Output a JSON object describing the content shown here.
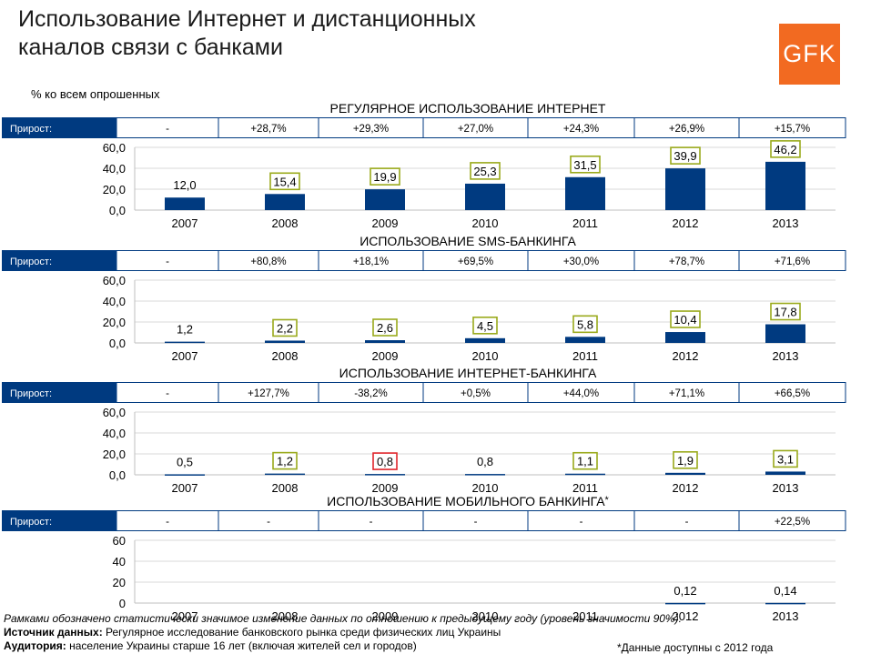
{
  "page_title_line1": "Использование Интернет и дистанционных",
  "page_title_line2": "каналов связи с банками",
  "logo_text": "GFK",
  "subtitle": "% ко всем опрошенных",
  "growth_label": "Прирост:",
  "colors": {
    "bar": "#003a80",
    "header": "#003a80",
    "box_green": "#9aaa1c",
    "box_red": "#e0262c",
    "logo": "#f26a21"
  },
  "chart_data": [
    {
      "type": "bar",
      "title": "РЕГУЛЯРНОЕ ИСПОЛЬЗОВАНИЕ ИНТЕРНЕТ",
      "categories": [
        "2007",
        "2008",
        "2009",
        "2010",
        "2011",
        "2012",
        "2013"
      ],
      "values": [
        12.0,
        15.4,
        19.9,
        25.3,
        31.5,
        39.9,
        46.2
      ],
      "value_labels": [
        "12,0",
        "15,4",
        "19,9",
        "25,3",
        "31,5",
        "39,9",
        "46,2"
      ],
      "boxes": [
        "none",
        "green",
        "green",
        "green",
        "green",
        "green",
        "green"
      ],
      "growth": [
        "-",
        "+28,7%",
        "+29,3%",
        "+27,0%",
        "+24,3%",
        "+26,9%",
        "+15,7%"
      ],
      "ylim": [
        0,
        60
      ],
      "yticks": [
        "60,0",
        "40,0",
        "20,0",
        "0,0"
      ]
    },
    {
      "type": "bar",
      "title": "ИСПОЛЬЗОВАНИЕ SMS-БАНКИНГА",
      "categories": [
        "2007",
        "2008",
        "2009",
        "2010",
        "2011",
        "2012",
        "2013"
      ],
      "values": [
        1.2,
        2.2,
        2.6,
        4.5,
        5.8,
        10.4,
        17.8
      ],
      "value_labels": [
        "1,2",
        "2,2",
        "2,6",
        "4,5",
        "5,8",
        "10,4",
        "17,8"
      ],
      "boxes": [
        "none",
        "green",
        "green",
        "green",
        "green",
        "green",
        "green"
      ],
      "growth": [
        "-",
        "+80,8%",
        "+18,1%",
        "+69,5%",
        "+30,0%",
        "+78,7%",
        "+71,6%"
      ],
      "ylim": [
        0,
        60
      ],
      "yticks": [
        "60,0",
        "40,0",
        "20,0",
        "0,0"
      ]
    },
    {
      "type": "bar",
      "title": "ИСПОЛЬЗОВАНИЕ ИНТЕРНЕТ-БАНКИНГА",
      "categories": [
        "2007",
        "2008",
        "2009",
        "2010",
        "2011",
        "2012",
        "2013"
      ],
      "values": [
        0.5,
        1.2,
        0.8,
        0.8,
        1.1,
        1.9,
        3.1
      ],
      "value_labels": [
        "0,5",
        "1,2",
        "0,8",
        "0,8",
        "1,1",
        "1,9",
        "3,1"
      ],
      "boxes": [
        "none",
        "green",
        "red",
        "none",
        "green",
        "green",
        "green"
      ],
      "growth": [
        "-",
        "+127,7%",
        "-38,2%",
        "+0,5%",
        "+44,0%",
        "+71,1%",
        "+66,5%"
      ],
      "ylim": [
        0,
        60
      ],
      "yticks": [
        "60,0",
        "40,0",
        "20,0",
        "0,0"
      ]
    },
    {
      "type": "bar",
      "title": "ИСПОЛЬЗОВАНИЕ МОБИЛЬНОГО БАНКИНГА",
      "title_suffix": "*",
      "categories": [
        "2007",
        "2008",
        "2009",
        "2010",
        "2011",
        "2012",
        "2013"
      ],
      "values": [
        null,
        null,
        null,
        null,
        null,
        0.12,
        0.14
      ],
      "value_labels": [
        "",
        "",
        "",
        "",
        "",
        "0,12",
        "0,14"
      ],
      "boxes": [
        "none",
        "none",
        "none",
        "none",
        "none",
        "none",
        "none"
      ],
      "growth": [
        "-",
        "-",
        "-",
        "-",
        "-",
        "-",
        "+22,5%"
      ],
      "ylim": [
        0,
        60
      ],
      "yticks": [
        "60",
        "40",
        "20",
        "0"
      ]
    }
  ],
  "footnote_significance": "Рамками обозначено статистически значимое изменение данных по отношению к предыдущему году (уровень значимости 90%).",
  "source_label": "Источник данных:",
  "source_text": " Регулярное исследование банковского рынка среди физических лиц Украины",
  "audience_label": "Аудитория:",
  "audience_text": " население Украины старше 16 лет (включая жителей сел и городов)",
  "availability_note": "*Данные доступны с 2012 года"
}
